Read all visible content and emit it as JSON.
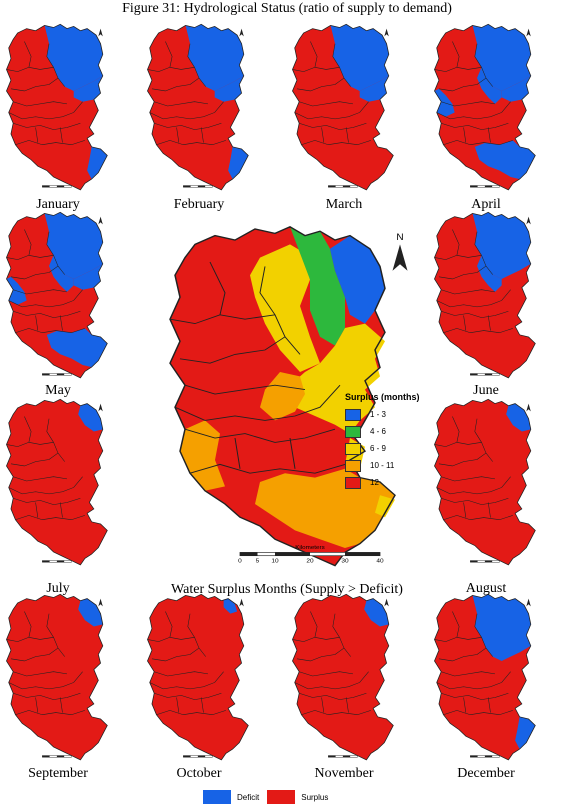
{
  "title": "Figure 31: Hydrological Status  (ratio of supply to demand)",
  "colors": {
    "deficit": "#1763e6",
    "surplus": "#e31a16",
    "c1_3": "#1763e6",
    "c4_6": "#2db83d",
    "c6_9": "#f2d100",
    "c10_11": "#f5a000",
    "c12": "#e31a16",
    "boundary": "#222222"
  },
  "months": [
    {
      "label": "January",
      "deficit_zones": [
        "north",
        "east",
        "southeast"
      ]
    },
    {
      "label": "February",
      "deficit_zones": [
        "north",
        "east",
        "southeast"
      ]
    },
    {
      "label": "March",
      "deficit_zones": [
        "north",
        "east"
      ]
    },
    {
      "label": "April",
      "deficit_zones": [
        "north",
        "east",
        "center",
        "west",
        "south"
      ]
    },
    {
      "label": "May",
      "deficit_zones": [
        "north",
        "east",
        "center",
        "west",
        "south"
      ]
    },
    {
      "label": "June",
      "deficit_zones": [
        "north",
        "center"
      ]
    },
    {
      "label": "July",
      "deficit_zones": [
        "ne_corner"
      ]
    },
    {
      "label": "August",
      "deficit_zones": [
        "ne_corner"
      ]
    },
    {
      "label": "September",
      "deficit_zones": [
        "ne_corner"
      ]
    },
    {
      "label": "October",
      "deficit_zones": [
        "ne_tiny"
      ]
    },
    {
      "label": "November",
      "deficit_zones": [
        "ne_corner"
      ]
    },
    {
      "label": "December",
      "deficit_zones": [
        "north",
        "southeast"
      ]
    }
  ],
  "main_map": {
    "subtitle": "Water Surplus Months (Supply > Deficit)",
    "legend_title": "Surplus (months)",
    "classes": [
      {
        "label": "1 - 3",
        "color": "#1763e6"
      },
      {
        "label": "4 - 6",
        "color": "#2db83d"
      },
      {
        "label": "6 - 9",
        "color": "#f2d100"
      },
      {
        "label": "10 - 11",
        "color": "#f5a000"
      },
      {
        "label": "12",
        "color": "#e31a16"
      }
    ],
    "scale_unit": "Kilometers",
    "scale_ticks": [
      "0",
      "5",
      "10",
      "20",
      "30",
      "40"
    ],
    "north": "N"
  },
  "legend": {
    "deficit_label": "Deficit",
    "surplus_label": "Surplus"
  }
}
